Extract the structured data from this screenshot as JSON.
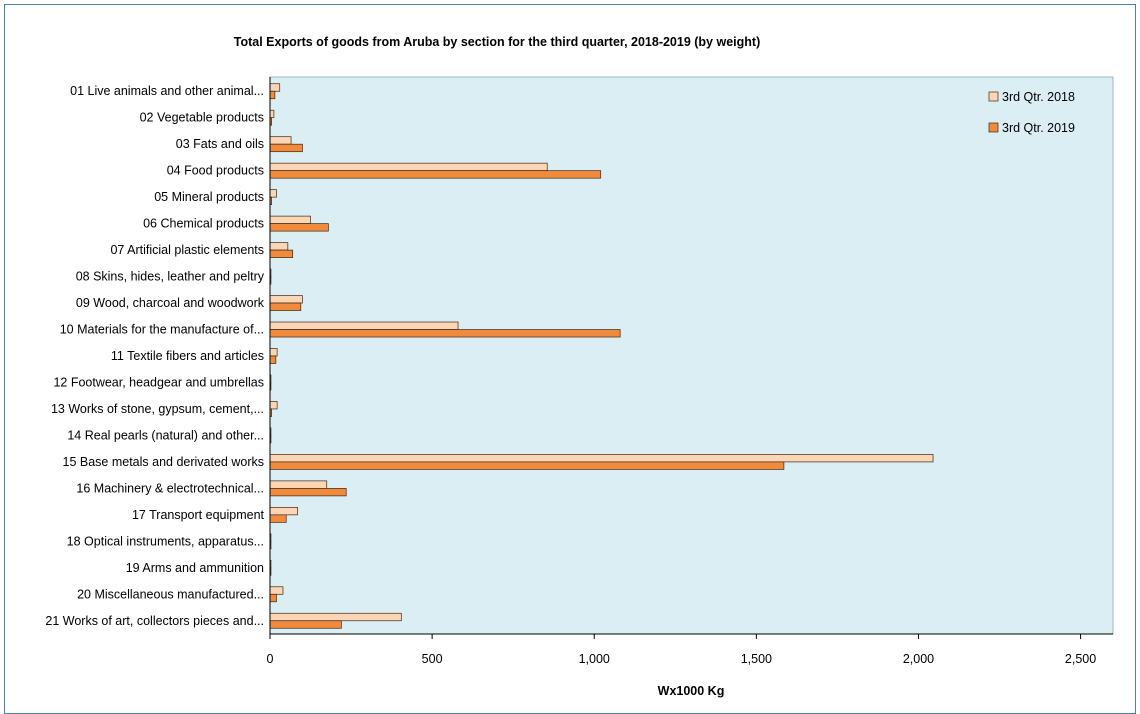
{
  "chart_data": {
    "type": "bar",
    "orientation": "horizontal",
    "title": "Total Exports of goods from Aruba by section for the third quarter, 2018-2019 (by weight)",
    "xlabel": "Wx1000 Kg",
    "ylabel": "",
    "xlim": [
      0,
      2600
    ],
    "xticks": [
      0,
      500,
      1000,
      1500,
      2000,
      2500
    ],
    "xtick_labels": [
      "0",
      "500",
      "1,000",
      "1,500",
      "2,000",
      "2,500"
    ],
    "grid": false,
    "legend_position": "top-right",
    "categories": [
      "01 Live animals and other animal...",
      "02 Vegetable products",
      "03 Fats and oils",
      "04 Food products",
      "05 Mineral products",
      "06 Chemical products",
      "07 Artificial plastic elements",
      "08 Skins, hides, leather and peltry",
      "09 Wood, charcoal and woodwork",
      "10 Materials for the manufacture of...",
      "11 Textile fibers and articles",
      "12 Footwear, headgear and umbrellas",
      "13 Works of stone, gypsum, cement,...",
      "14 Real pearls (natural) and other...",
      "15 Base metals and derivated works",
      "16 Machinery & electrotechnical...",
      "17 Transport equipment",
      "18 Optical instruments, apparatus...",
      "19 Arms and ammunition",
      "20 Miscellaneous manufactured...",
      "21 Works of art, collectors pieces and..."
    ],
    "series": [
      {
        "name": "3rd Qtr. 2018",
        "color": "#fcd5b5",
        "values": [
          30,
          12,
          65,
          855,
          20,
          125,
          55,
          3,
          100,
          580,
          22,
          3,
          22,
          3,
          2045,
          175,
          85,
          3,
          3,
          40,
          405
        ]
      },
      {
        "name": "3rd Qtr. 2019",
        "color": "#f08a3c",
        "values": [
          15,
          5,
          100,
          1020,
          5,
          180,
          70,
          3,
          95,
          1080,
          18,
          3,
          5,
          3,
          1585,
          235,
          50,
          3,
          3,
          20,
          220
        ]
      }
    ],
    "plot_background": "#daeef3",
    "bar_outline": "#3a2a1a"
  }
}
